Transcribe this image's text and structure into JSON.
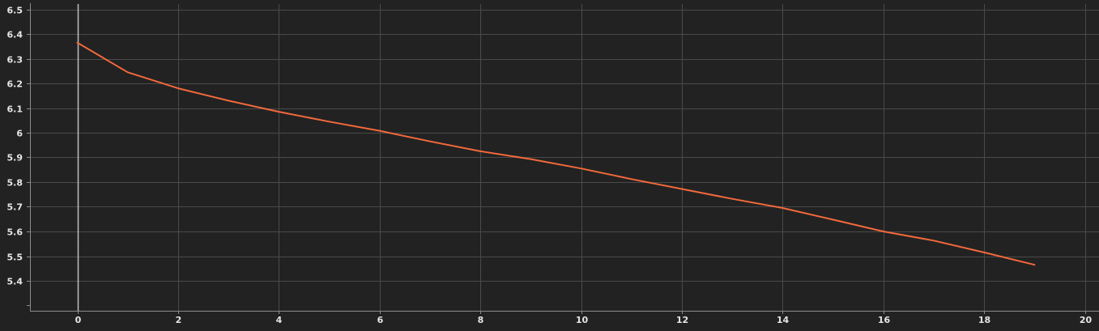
{
  "chart_data": {
    "type": "line",
    "title": "",
    "xlabel": "",
    "ylabel": "",
    "xlim": [
      -1,
      20.3
    ],
    "ylim": [
      5.29,
      6.53
    ],
    "x_ticks": [
      0,
      2,
      4,
      6,
      8,
      10,
      12,
      14,
      16,
      18,
      20
    ],
    "y_ticks": [
      5.4,
      5.5,
      5.6,
      5.7,
      5.8,
      5.9,
      6,
      6.1,
      6.2,
      6.3,
      6.4,
      6.5
    ],
    "grid": true,
    "series": [
      {
        "color": "#f2693c",
        "x": [
          0,
          1,
          2,
          3,
          4,
          5,
          6,
          7,
          8,
          9,
          10,
          11,
          12,
          13,
          14,
          15,
          16,
          17,
          18,
          19
        ],
        "y": [
          6.365,
          6.245,
          6.18,
          6.13,
          6.085,
          6.045,
          6.008,
          5.965,
          5.925,
          5.893,
          5.855,
          5.812,
          5.772,
          5.732,
          5.695,
          5.648,
          5.6,
          5.563,
          5.515,
          5.465
        ]
      }
    ]
  },
  "colors": {
    "background": "#222222",
    "grid": "#4a4a4a",
    "axis": "#8c8c8c",
    "zero_line": "#bdbdbd",
    "tick_text": "#e6e6e6"
  }
}
